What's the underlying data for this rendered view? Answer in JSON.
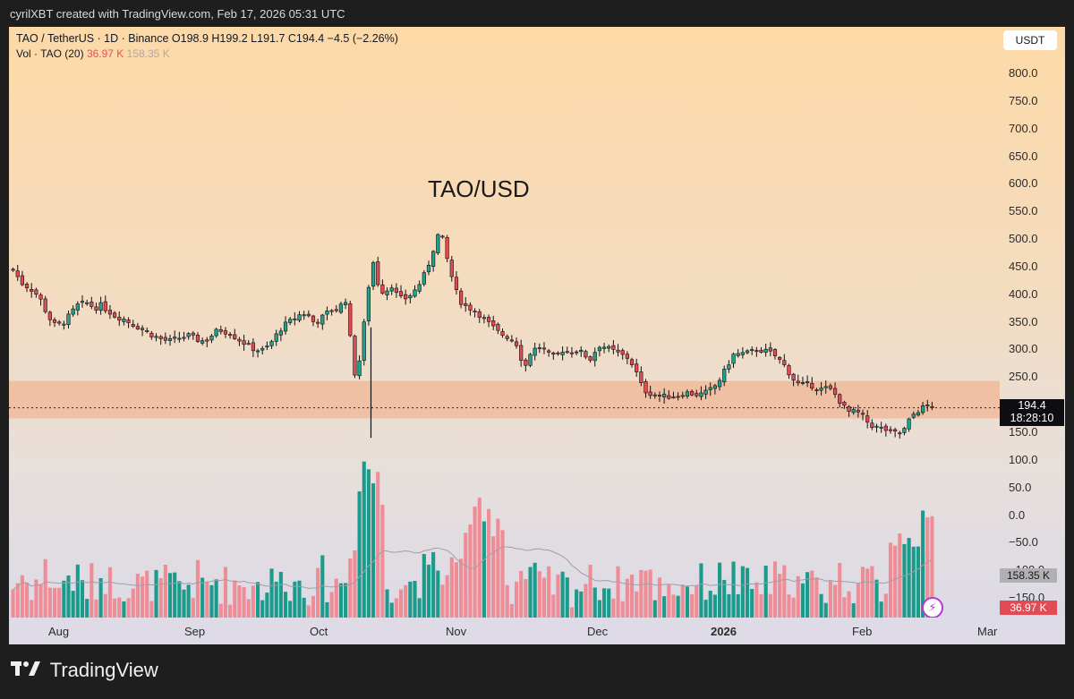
{
  "header": {
    "attribution": "cyrilXBT created with TradingView.com, Feb 17, 2026 05:31 UTC"
  },
  "legend": {
    "symbol": "TAO / TetherUS · 1D · Binance",
    "ohlc": "O198.9  H199.2  L191.7  C194.4  −4.5 (−2.26%)",
    "vol_label": "Vol · TAO (20)",
    "vol_value": "36.97 K",
    "vol_ma": "158.35 K"
  },
  "currency_button": "USDT",
  "price_badge": {
    "price": "194.4",
    "countdown": "18:28:10"
  },
  "volume_badges": {
    "ma": "158.35 K",
    "current": "36.97 K"
  },
  "footer": {
    "brand": "TradingView"
  },
  "colors": {
    "up": "#22a18b",
    "down": "#e34b54",
    "vol_up": "#1a9b8c",
    "vol_down": "#ef8d97",
    "zone": "#f3a880"
  },
  "chart_data": {
    "type": "candlestick",
    "title": "TAO/USD",
    "x_labels": [
      "Aug",
      "Sep",
      "Oct",
      "Nov",
      "Dec",
      "2026",
      "Feb",
      "Mar"
    ],
    "y_ticks": [
      "800.0",
      "750.0",
      "700.0",
      "650.0",
      "600.0",
      "550.0",
      "500.0",
      "450.0",
      "400.0",
      "350.0",
      "300.0",
      "250.0",
      "200.0",
      "150.0",
      "100.0",
      "50.0",
      "0.0",
      "−50.0",
      "−100.0",
      "−150.0"
    ],
    "ylim": [
      -150,
      800
    ],
    "last_price": 194.4,
    "support_zone": [
      175,
      243
    ],
    "close_path": [
      [
        0,
        445
      ],
      [
        6,
        420
      ],
      [
        12,
        410
      ],
      [
        18,
        395
      ],
      [
        24,
        360
      ],
      [
        28,
        345
      ],
      [
        33,
        345
      ],
      [
        38,
        360
      ],
      [
        44,
        380
      ],
      [
        50,
        385
      ],
      [
        56,
        375
      ],
      [
        60,
        380
      ],
      [
        64,
        372
      ],
      [
        70,
        360
      ],
      [
        76,
        355
      ],
      [
        80,
        348
      ],
      [
        86,
        340
      ],
      [
        92,
        330
      ],
      [
        96,
        325
      ],
      [
        100,
        320
      ],
      [
        106,
        315
      ],
      [
        110,
        318
      ],
      [
        115,
        322
      ],
      [
        120,
        325
      ],
      [
        124,
        320
      ],
      [
        128,
        315
      ],
      [
        133,
        318
      ],
      [
        138,
        332
      ],
      [
        142,
        335
      ],
      [
        148,
        330
      ],
      [
        152,
        322
      ],
      [
        156,
        315
      ],
      [
        160,
        308
      ],
      [
        165,
        300
      ],
      [
        170,
        298
      ],
      [
        174,
        305
      ],
      [
        178,
        318
      ],
      [
        182,
        335
      ],
      [
        186,
        345
      ],
      [
        190,
        352
      ],
      [
        194,
        360
      ],
      [
        198,
        366
      ],
      [
        202,
        360
      ],
      [
        206,
        348
      ],
      [
        210,
        355
      ],
      [
        214,
        365
      ],
      [
        217,
        372
      ],
      [
        220,
        370
      ],
      [
        224,
        380
      ],
      [
        228,
        392
      ],
      [
        230,
        330
      ],
      [
        232,
        280
      ],
      [
        234,
        250
      ],
      [
        236,
        270
      ],
      [
        238,
        300
      ],
      [
        240,
        350
      ],
      [
        242,
        390
      ],
      [
        244,
        440
      ],
      [
        246,
        460
      ],
      [
        248,
        430
      ],
      [
        250,
        415
      ],
      [
        254,
        400
      ],
      [
        258,
        420
      ],
      [
        262,
        400
      ],
      [
        266,
        390
      ],
      [
        270,
        395
      ],
      [
        274,
        405
      ],
      [
        278,
        420
      ],
      [
        282,
        440
      ],
      [
        286,
        470
      ],
      [
        288,
        490
      ],
      [
        290,
        505
      ],
      [
        292,
        515
      ],
      [
        294,
        495
      ],
      [
        296,
        470
      ],
      [
        298,
        450
      ],
      [
        300,
        430
      ],
      [
        302,
        410
      ],
      [
        305,
        390
      ],
      [
        308,
        380
      ],
      [
        312,
        375
      ],
      [
        316,
        370
      ],
      [
        320,
        360
      ],
      [
        324,
        350
      ],
      [
        328,
        340
      ],
      [
        332,
        330
      ],
      [
        336,
        325
      ],
      [
        340,
        320
      ],
      [
        344,
        310
      ],
      [
        346,
        290
      ],
      [
        348,
        280
      ],
      [
        350,
        268
      ],
      [
        352,
        290
      ],
      [
        356,
        300
      ],
      [
        360,
        305
      ],
      [
        364,
        296
      ],
      [
        368,
        285
      ],
      [
        372,
        290
      ],
      [
        376,
        300
      ],
      [
        380,
        295
      ],
      [
        384,
        300
      ],
      [
        388,
        295
      ],
      [
        392,
        287
      ],
      [
        396,
        280
      ],
      [
        398,
        300
      ],
      [
        400,
        308
      ],
      [
        404,
        305
      ],
      [
        408,
        300
      ],
      [
        412,
        295
      ],
      [
        416,
        290
      ],
      [
        420,
        285
      ],
      [
        424,
        270
      ],
      [
        428,
        245
      ],
      [
        430,
        230
      ],
      [
        432,
        225
      ],
      [
        436,
        220
      ],
      [
        440,
        218
      ],
      [
        444,
        215
      ],
      [
        448,
        215
      ],
      [
        452,
        216
      ],
      [
        456,
        218
      ],
      [
        460,
        222
      ],
      [
        464,
        220
      ],
      [
        468,
        218
      ],
      [
        472,
        220
      ],
      [
        476,
        226
      ],
      [
        480,
        235
      ],
      [
        484,
        250
      ],
      [
        488,
        270
      ],
      [
        492,
        290
      ],
      [
        496,
        292
      ],
      [
        500,
        293
      ],
      [
        504,
        295
      ],
      [
        508,
        300
      ],
      [
        512,
        298
      ],
      [
        516,
        296
      ],
      [
        520,
        290
      ],
      [
        524,
        280
      ],
      [
        528,
        268
      ],
      [
        532,
        250
      ],
      [
        536,
        238
      ],
      [
        540,
        236
      ],
      [
        544,
        237
      ],
      [
        548,
        232
      ],
      [
        552,
        228
      ],
      [
        556,
        230
      ],
      [
        560,
        225
      ],
      [
        564,
        210
      ],
      [
        568,
        195
      ],
      [
        572,
        185
      ],
      [
        576,
        188
      ],
      [
        580,
        180
      ],
      [
        584,
        168
      ],
      [
        588,
        160
      ],
      [
        592,
        158
      ],
      [
        596,
        155
      ],
      [
        600,
        150
      ],
      [
        604,
        148
      ],
      [
        608,
        150
      ],
      [
        612,
        170
      ],
      [
        616,
        185
      ],
      [
        620,
        192
      ],
      [
        624,
        198
      ],
      [
        628,
        194.4
      ]
    ],
    "volume": {
      "unit": "K",
      "ma_last": 158.35,
      "last": 36.97
    }
  }
}
